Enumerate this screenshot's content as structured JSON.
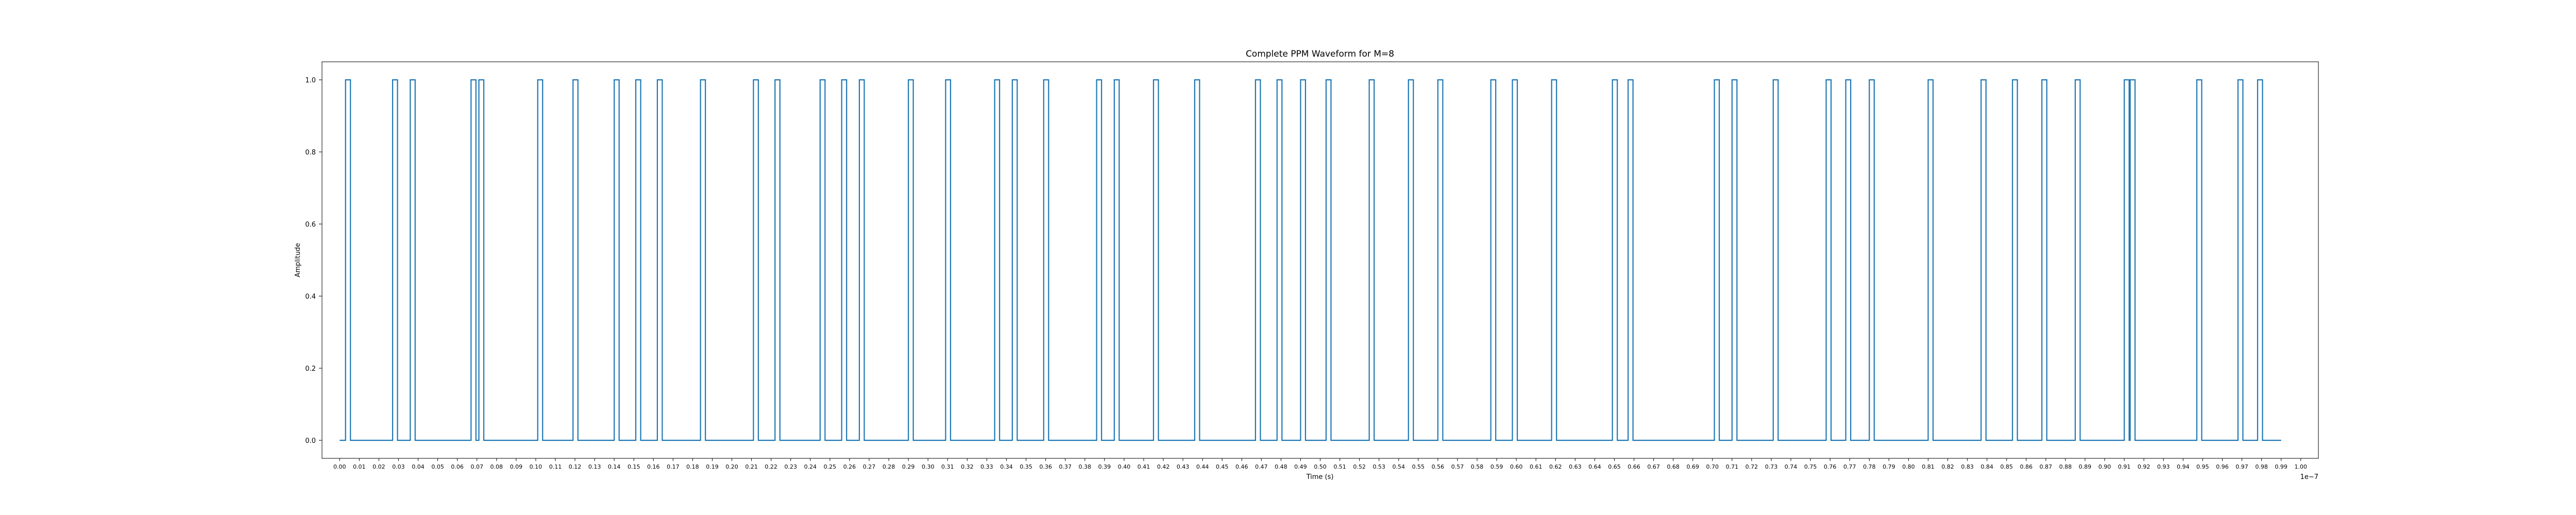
{
  "chart_data": {
    "type": "line",
    "title": "Complete PPM Waveform for M=8",
    "xlabel": "Time (s)",
    "ylabel": "Amplitude",
    "x_offset_label": "1e−7",
    "xlim": [
      -0.009,
      1.009
    ],
    "ylim": [
      -0.05,
      1.05
    ],
    "xticks_note": "0.00, 0.01, 0.02, … (dense labels)",
    "yticks": [
      "0.0",
      "0.2",
      "0.4",
      "0.6",
      "0.8",
      "1.0"
    ],
    "grid": false,
    "color": "#1f77b4",
    "pulse_width": 0.0025,
    "pulse_starts": [
      0.003,
      0.027,
      0.036,
      0.067,
      0.071,
      0.101,
      0.119,
      0.14,
      0.151,
      0.162,
      0.184,
      0.211,
      0.222,
      0.245,
      0.256,
      0.265,
      0.29,
      0.309,
      0.334,
      0.343,
      0.359,
      0.386,
      0.395,
      0.415,
      0.436,
      0.467,
      0.478,
      0.49,
      0.503,
      0.525,
      0.545,
      0.56,
      0.587,
      0.598,
      0.618,
      0.649,
      0.657,
      0.701,
      0.71,
      0.731,
      0.758,
      0.768,
      0.78,
      0.81,
      0.837,
      0.853,
      0.868,
      0.885,
      0.91,
      0.913,
      0.947,
      0.968,
      0.978
    ],
    "x_end": 0.99
  }
}
